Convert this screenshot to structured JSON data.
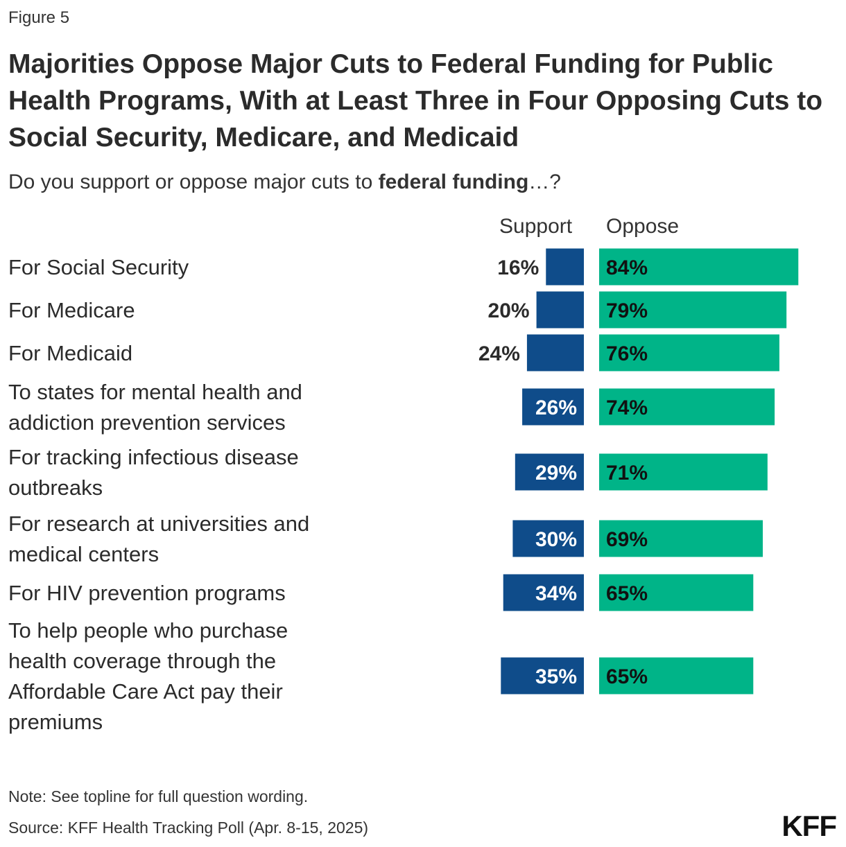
{
  "figure_label": "Figure 5",
  "title": "Majorities Oppose Major Cuts to Federal Funding for Public Health Programs, With at Least Three in Four Opposing Cuts to Social Security, Medicare, and Medicaid",
  "subtitle_prefix": "Do you support or oppose major cuts to ",
  "subtitle_bold": "federal funding",
  "subtitle_suffix": "…?",
  "note": "Note: See topline for full question wording.",
  "source": "Source: KFF Health Tracking Poll (Apr. 8-15, 2025)",
  "logo": "KFF",
  "colors": {
    "support": "#0f4c8a",
    "oppose": "#00b488"
  },
  "chart_data": {
    "type": "bar",
    "orientation": "horizontal-diverging",
    "title": "Majorities Oppose Major Cuts to Federal Funding for Public Health Programs, With at Least Three in Four Opposing Cuts to Social Security, Medicare, and Medicaid",
    "categories": [
      "For Social Security",
      "For Medicare",
      "For Medicaid",
      "To states for mental health and addiction prevention services",
      "For tracking infectious disease outbreaks",
      "For research at universities and medical centers",
      "For HIV prevention programs",
      "To help people who purchase health coverage through the Affordable Care Act pay their premiums"
    ],
    "category_lines": [
      [
        "For Social Security"
      ],
      [
        "For Medicare"
      ],
      [
        "For Medicaid"
      ],
      [
        "To states for mental health and",
        "addiction prevention services"
      ],
      [
        "For tracking infectious disease",
        "outbreaks"
      ],
      [
        "For research at universities and",
        "medical centers"
      ],
      [
        "For HIV prevention programs"
      ],
      [
        "To help people who purchase",
        "health coverage through the",
        "Affordable Care Act pay their",
        "premiums"
      ]
    ],
    "series": [
      {
        "name": "Support",
        "values": [
          16,
          20,
          24,
          26,
          29,
          30,
          34,
          35
        ],
        "labels": [
          "16%",
          "20%",
          "24%",
          "26%",
          "29%",
          "30%",
          "34%",
          "35%"
        ]
      },
      {
        "name": "Oppose",
        "values": [
          84,
          79,
          76,
          74,
          71,
          69,
          65,
          65
        ],
        "labels": [
          "84%",
          "79%",
          "76%",
          "74%",
          "71%",
          "69%",
          "65%",
          "65%"
        ]
      }
    ],
    "unit": "%",
    "xlim": [
      0,
      100
    ]
  }
}
